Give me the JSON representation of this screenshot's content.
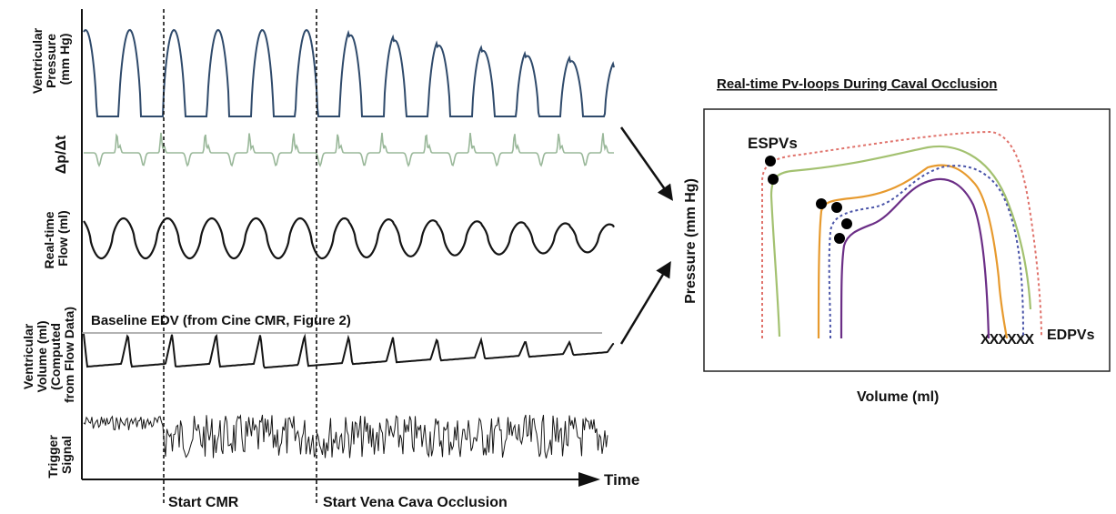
{
  "left_panel": {
    "traces": [
      {
        "label_lines": [
          "Ventricular",
          "Pressure",
          "(mm Hg)"
        ],
        "color": "#2f4a6b"
      },
      {
        "label_lines": [
          "Δp/Δt"
        ],
        "color": "#9ab89a"
      },
      {
        "label_lines": [
          "Real-time",
          "Flow (ml)"
        ],
        "color": "#151515"
      },
      {
        "label_lines": [
          "Ventricular",
          "Volume (ml)",
          "(Computed",
          "from Flow Data)"
        ],
        "color": "#151515"
      },
      {
        "label_lines": [
          "Trigger",
          "Signal"
        ],
        "color": "#151515"
      }
    ],
    "baseline_label": "Baseline EDV (from Cine CMR, Figure 2)",
    "time_label": "Time",
    "markers": [
      {
        "label": "Start CMR"
      },
      {
        "label": "Start Vena Cava Occlusion"
      }
    ]
  },
  "right_panel": {
    "title": "Real-time Pv-loops During Caval Occlusion",
    "x_label": "Volume (ml)",
    "y_label": "Pressure (mm Hg)",
    "espv_label": "ESPVs",
    "edpv_label": "EDPVs",
    "edpv_marks": "XXXXXX",
    "loop_colors": [
      "#e0736c",
      "#a3c170",
      "#e79a2e",
      "#4a54a8",
      "#6b2e86"
    ]
  }
}
